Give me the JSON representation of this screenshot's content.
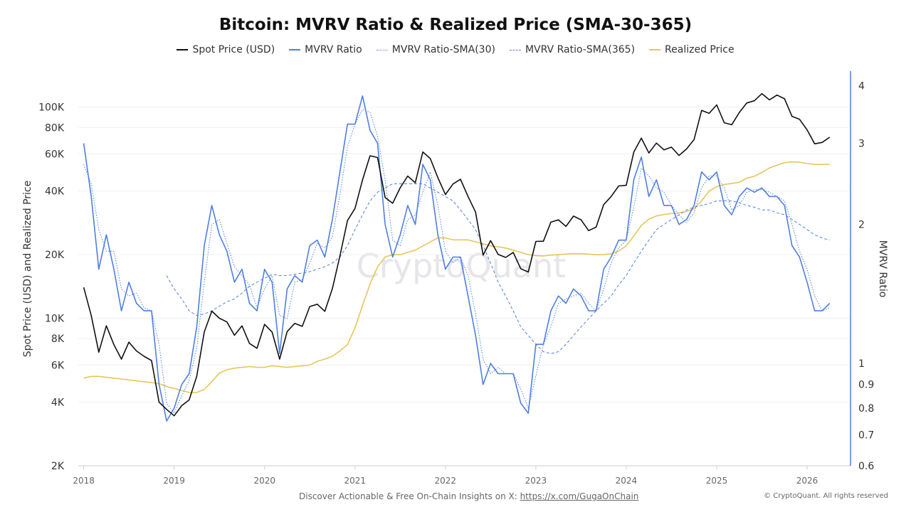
{
  "chart_data": {
    "type": "line",
    "title": "Bitcoin: MVRV Ratio & Realized Price (SMA-30-365)",
    "ylabel_left": "Spot Price (USD) and Realized Price",
    "ylabel_right": "MVRV Ratio",
    "yscale_left": "log",
    "yscale_right": "log",
    "ylim_left": [
      2000,
      148000
    ],
    "ylim_right": [
      0.6,
      4.3
    ],
    "xlim": [
      2017.94,
      2026.48
    ],
    "grid": true,
    "legend_position": "top",
    "x_ticks": [
      "2018",
      "2019",
      "2020",
      "2021",
      "2022",
      "2023",
      "2024",
      "2025",
      "2026"
    ],
    "y_ticks_left": [
      {
        "v": 2000,
        "label": "2K"
      },
      {
        "v": 4000,
        "label": "4K"
      },
      {
        "v": 6000,
        "label": "6K"
      },
      {
        "v": 8000,
        "label": "8K"
      },
      {
        "v": 10000,
        "label": "10K"
      },
      {
        "v": 20000,
        "label": "20K"
      },
      {
        "v": 40000,
        "label": "40K"
      },
      {
        "v": 60000,
        "label": "60K"
      },
      {
        "v": 80000,
        "label": "80K"
      },
      {
        "v": 100000,
        "label": "100K"
      }
    ],
    "y_ticks_right": [
      {
        "v": 0.6,
        "label": "0.6"
      },
      {
        "v": 0.7,
        "label": "0.7"
      },
      {
        "v": 0.8,
        "label": "0.8"
      },
      {
        "v": 0.9,
        "label": "0.9"
      },
      {
        "v": 1,
        "label": "1"
      },
      {
        "v": 2,
        "label": "2"
      },
      {
        "v": 3,
        "label": "3"
      },
      {
        "v": 4,
        "label": "4"
      }
    ],
    "series": [
      {
        "name": "Spot Price (USD)",
        "axis": "left",
        "color": "#111111",
        "style": "solid",
        "start": "2018-01",
        "values": [
          14000,
          10300,
          6900,
          9200,
          7500,
          6400,
          7700,
          7000,
          6600,
          6300,
          4000,
          3700,
          3450,
          3850,
          4100,
          5300,
          8600,
          10800,
          10000,
          9600,
          8300,
          9200,
          7600,
          7200,
          9350,
          8600,
          6400,
          8650,
          9450,
          9150,
          11350,
          11650,
          10780,
          13800,
          19700,
          29000,
          33100,
          45200,
          58800,
          57700,
          37300,
          35000,
          41500,
          47100,
          43800,
          61300,
          57000,
          46300,
          38500,
          43200,
          45500,
          37700,
          31800,
          19900,
          23300,
          20050,
          19400,
          20500,
          17150,
          16550,
          23100,
          23150,
          28500,
          29250,
          27200,
          30450,
          29250,
          26000,
          27000,
          34500,
          37700,
          42300,
          42600,
          61200,
          71300,
          60600,
          67500,
          62700,
          64600,
          59000,
          63300,
          70200,
          96400,
          93400,
          102400,
          84300,
          82500,
          94200,
          104600,
          107100,
          115700,
          108200,
          114000,
          109500,
          90400,
          87500,
          78000,
          67000,
          68000,
          72000
        ]
      },
      {
        "name": "MVRV Ratio",
        "axis": "right",
        "color": "#4f7fe0",
        "style": "solid",
        "start": "2018-01",
        "values": [
          3.0,
          2.3,
          1.6,
          1.9,
          1.6,
          1.3,
          1.5,
          1.35,
          1.3,
          1.3,
          0.9,
          0.75,
          0.8,
          0.9,
          0.95,
          1.2,
          1.8,
          2.2,
          1.9,
          1.75,
          1.5,
          1.6,
          1.35,
          1.3,
          1.6,
          1.5,
          1.05,
          1.45,
          1.55,
          1.5,
          1.8,
          1.85,
          1.7,
          2.05,
          2.6,
          3.3,
          3.3,
          3.8,
          3.2,
          3.0,
          2.0,
          1.7,
          1.9,
          2.2,
          2.0,
          2.7,
          2.5,
          1.9,
          1.6,
          1.7,
          1.7,
          1.4,
          1.15,
          0.9,
          1.0,
          0.95,
          0.95,
          0.95,
          0.82,
          0.78,
          1.1,
          1.1,
          1.3,
          1.4,
          1.35,
          1.45,
          1.4,
          1.3,
          1.3,
          1.6,
          1.7,
          1.85,
          1.85,
          2.5,
          2.8,
          2.3,
          2.5,
          2.2,
          2.2,
          2.0,
          2.05,
          2.2,
          2.6,
          2.5,
          2.6,
          2.2,
          2.1,
          2.3,
          2.4,
          2.35,
          2.4,
          2.3,
          2.3,
          2.2,
          1.8,
          1.7,
          1.5,
          1.3,
          1.3,
          1.35
        ]
      },
      {
        "name": "MVRV Ratio-SMA(30)",
        "axis": "right",
        "color": "#4f7fe0",
        "style": "dotted",
        "start": "2018-01",
        "values": [
          2.7,
          2.45,
          1.95,
          1.75,
          1.75,
          1.45,
          1.4,
          1.42,
          1.32,
          1.3,
          1.1,
          0.82,
          0.78,
          0.85,
          0.92,
          1.08,
          1.5,
          2.0,
          2.05,
          1.82,
          1.62,
          1.55,
          1.48,
          1.32,
          1.45,
          1.55,
          1.27,
          1.25,
          1.5,
          1.52,
          1.65,
          1.82,
          1.78,
          1.88,
          2.32,
          2.95,
          3.3,
          3.55,
          3.5,
          3.1,
          2.5,
          1.85,
          1.8,
          2.05,
          2.1,
          2.35,
          2.6,
          2.2,
          1.75,
          1.65,
          1.7,
          1.55,
          1.28,
          1.02,
          0.95,
          0.98,
          0.95,
          0.95,
          0.88,
          0.8,
          0.94,
          1.1,
          1.2,
          1.35,
          1.38,
          1.4,
          1.42,
          1.35,
          1.3,
          1.45,
          1.65,
          1.78,
          1.85,
          2.18,
          2.65,
          2.55,
          2.4,
          2.35,
          2.2,
          2.1,
          2.02,
          2.12,
          2.4,
          2.55,
          2.55,
          2.4,
          2.15,
          2.2,
          2.35,
          2.38,
          2.38,
          2.35,
          2.3,
          2.25,
          2.0,
          1.75,
          1.6,
          1.4,
          1.3,
          1.32
        ]
      },
      {
        "name": "MVRV Ratio-SMA(365)",
        "axis": "right",
        "color": "#4f7fe0",
        "style": "dashed",
        "start": "2018-12",
        "values": [
          1.55,
          1.45,
          1.38,
          1.3,
          1.27,
          1.28,
          1.3,
          1.33,
          1.36,
          1.38,
          1.42,
          1.47,
          1.5,
          1.53,
          1.56,
          1.55,
          1.55,
          1.56,
          1.57,
          1.58,
          1.6,
          1.62,
          1.65,
          1.7,
          1.8,
          1.95,
          2.1,
          2.25,
          2.35,
          2.4,
          2.45,
          2.45,
          2.45,
          2.45,
          2.45,
          2.4,
          2.35,
          2.3,
          2.25,
          2.15,
          2.05,
          1.95,
          1.8,
          1.65,
          1.5,
          1.4,
          1.3,
          1.2,
          1.15,
          1.1,
          1.06,
          1.05,
          1.06,
          1.1,
          1.15,
          1.2,
          1.25,
          1.3,
          1.35,
          1.4,
          1.48,
          1.55,
          1.65,
          1.75,
          1.85,
          1.95,
          2.0,
          2.05,
          2.1,
          2.15,
          2.18,
          2.2,
          2.22,
          2.25,
          2.25,
          2.25,
          2.23,
          2.2,
          2.18,
          2.15,
          2.15,
          2.12,
          2.1,
          2.05,
          2.0,
          1.95,
          1.9,
          1.87,
          1.85
        ]
      },
      {
        "name": "Realized Price",
        "axis": "left",
        "color": "#e8c55a",
        "style": "solid",
        "start": "2018-01",
        "values": [
          5200,
          5300,
          5300,
          5250,
          5200,
          5150,
          5100,
          5050,
          5000,
          4950,
          4900,
          4750,
          4650,
          4550,
          4450,
          4450,
          4600,
          5000,
          5500,
          5700,
          5800,
          5850,
          5900,
          5850,
          5850,
          5950,
          5900,
          5850,
          5900,
          5950,
          6000,
          6250,
          6400,
          6600,
          7000,
          7500,
          9000,
          11500,
          14500,
          17500,
          19500,
          20000,
          20000,
          20500,
          21000,
          22000,
          23000,
          24000,
          24000,
          23500,
          23500,
          23500,
          23000,
          22500,
          22000,
          21800,
          21500,
          21000,
          20500,
          20000,
          19800,
          19700,
          19900,
          20000,
          20100,
          20200,
          20200,
          20100,
          20000,
          20000,
          20200,
          20800,
          22000,
          24500,
          27500,
          29500,
          30500,
          31000,
          31300,
          31500,
          32000,
          33000,
          36000,
          40000,
          42000,
          43000,
          43500,
          44000,
          46000,
          47000,
          49000,
          51500,
          53000,
          54500,
          55000,
          54800,
          54000,
          53500,
          53500,
          53500
        ]
      }
    ]
  },
  "watermark": "CryptoQuant",
  "footer": {
    "text": "Discover Actionable & Free On-Chain Insights on X: ",
    "link": "https://x.com/GugaOnChain"
  },
  "copyright": "© CryptoQuant. All rights reserved"
}
